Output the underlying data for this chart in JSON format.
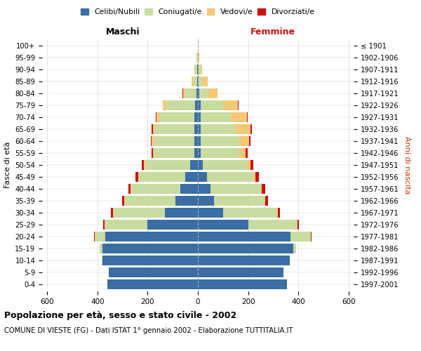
{
  "age_groups": [
    "0-4",
    "5-9",
    "10-14",
    "15-19",
    "20-24",
    "25-29",
    "30-34",
    "35-39",
    "40-44",
    "45-49",
    "50-54",
    "55-59",
    "60-64",
    "65-69",
    "70-74",
    "75-79",
    "80-84",
    "85-89",
    "90-94",
    "95-99",
    "100+"
  ],
  "birth_years": [
    "1997-2001",
    "1992-1996",
    "1987-1991",
    "1982-1986",
    "1977-1981",
    "1972-1976",
    "1967-1971",
    "1962-1966",
    "1957-1961",
    "1952-1956",
    "1947-1951",
    "1942-1946",
    "1937-1941",
    "1932-1936",
    "1927-1931",
    "1922-1926",
    "1917-1921",
    "1912-1916",
    "1907-1911",
    "1902-1906",
    "≤ 1901"
  ],
  "male": {
    "celibi": [
      360,
      355,
      380,
      380,
      370,
      200,
      130,
      90,
      70,
      50,
      30,
      15,
      15,
      15,
      15,
      10,
      5,
      2,
      2,
      1,
      0
    ],
    "coniugati": [
      1,
      1,
      2,
      10,
      40,
      170,
      205,
      200,
      195,
      185,
      180,
      160,
      160,
      155,
      135,
      115,
      45,
      18,
      8,
      3,
      1
    ],
    "vedovi": [
      0,
      0,
      0,
      0,
      1,
      1,
      2,
      2,
      2,
      3,
      5,
      5,
      8,
      10,
      15,
      15,
      10,
      6,
      3,
      1,
      0
    ],
    "divorziati": [
      0,
      0,
      0,
      0,
      2,
      5,
      8,
      10,
      10,
      10,
      8,
      5,
      3,
      3,
      2,
      1,
      1,
      0,
      0,
      0,
      0
    ]
  },
  "female": {
    "nubili": [
      355,
      340,
      365,
      380,
      370,
      200,
      100,
      65,
      50,
      35,
      20,
      10,
      10,
      10,
      10,
      10,
      5,
      3,
      2,
      1,
      0
    ],
    "coniugate": [
      1,
      1,
      2,
      10,
      80,
      195,
      215,
      200,
      200,
      185,
      175,
      155,
      155,
      140,
      120,
      90,
      38,
      15,
      8,
      3,
      1
    ],
    "vedove": [
      0,
      0,
      0,
      0,
      1,
      2,
      3,
      3,
      5,
      10,
      15,
      25,
      40,
      60,
      65,
      60,
      35,
      20,
      8,
      2,
      0
    ],
    "divorziate": [
      0,
      0,
      0,
      0,
      2,
      5,
      10,
      10,
      12,
      12,
      10,
      8,
      5,
      4,
      3,
      1,
      1,
      0,
      0,
      0,
      0
    ]
  },
  "colors": {
    "celibi": "#3a6ea5",
    "coniugati": "#c8dca0",
    "vedovi": "#f5c878",
    "divorziati": "#cc1111"
  },
  "xlim": 620,
  "title": "Popolazione per età, sesso e stato civile - 2002",
  "subtitle": "COMUNE DI VIESTE (FG) - Dati ISTAT 1° gennaio 2002 - Elaborazione TUTTITALIA.IT",
  "ylabel": "Fasce di età",
  "right_ylabel": "Anni di nascita",
  "xlabel_left": "Maschi",
  "xlabel_right": "Femmine"
}
